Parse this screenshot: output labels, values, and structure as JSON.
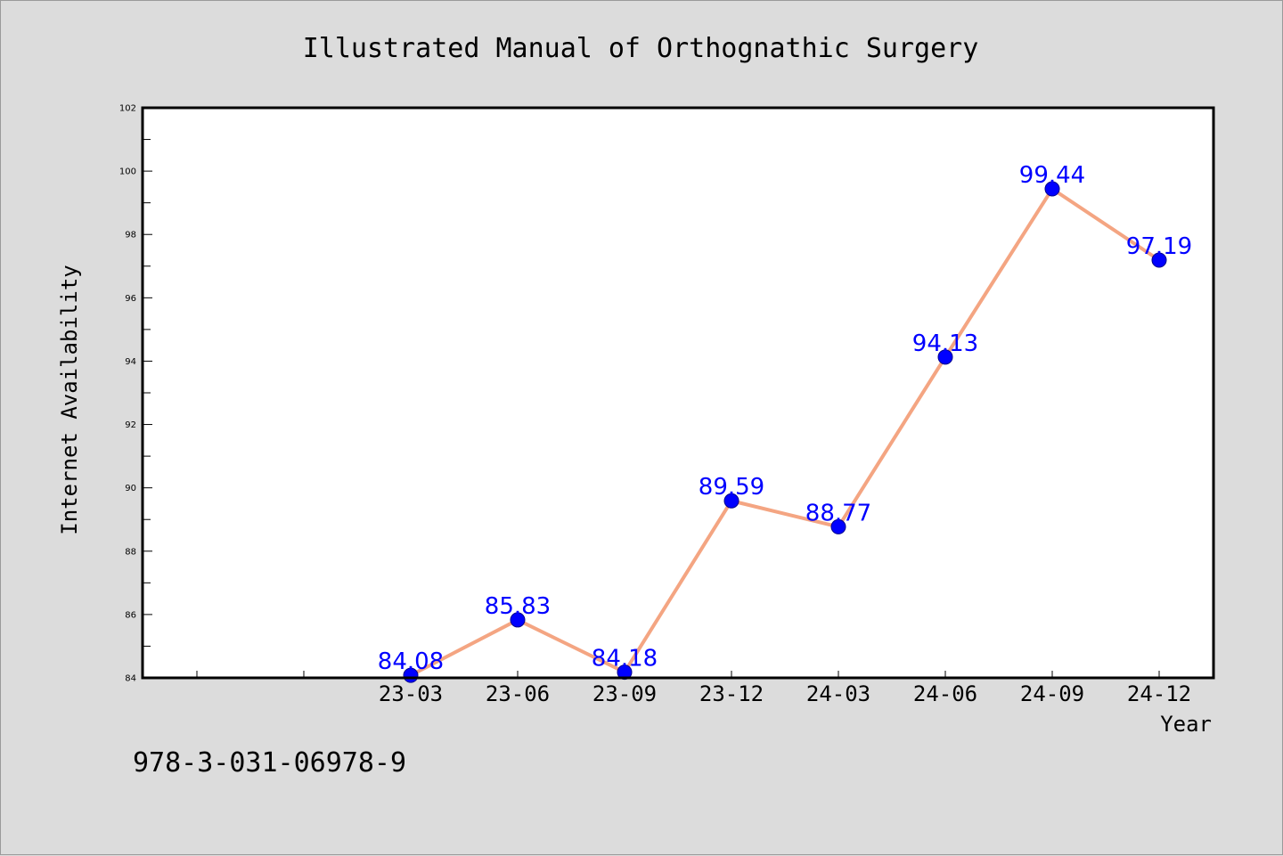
{
  "chart_data": {
    "type": "line",
    "title": "Illustrated Manual of Orthognathic Surgery",
    "xlabel": "Year",
    "ylabel": "Internet Availability",
    "categories": [
      "",
      "",
      "23-03",
      "23-06",
      "23-09",
      "23-12",
      "24-03",
      "24-06",
      "24-09",
      "24-12"
    ],
    "series": [
      {
        "values": [
          null,
          null,
          84.08,
          85.83,
          84.18,
          89.59,
          88.77,
          94.13,
          99.44,
          97.19
        ],
        "color": "#f4a582",
        "marker_color": "#0000ff"
      }
    ],
    "data_labels": [
      "",
      "",
      "84.08",
      "85.83",
      "84.18",
      "89.59",
      "88.77",
      "94.13",
      "99.44",
      "97.19"
    ],
    "ylim": [
      84,
      102
    ],
    "yticks": [
      "84",
      "86",
      "88",
      "90",
      "92",
      "94",
      "96",
      "98",
      "100",
      "102"
    ],
    "grid": false,
    "legend": "none"
  },
  "footnote": "978-3-031-06978-9",
  "colors": {
    "background": "#dcdcdc",
    "plot_background": "#ffffff",
    "line": "#f4a582",
    "marker": "#0000ff",
    "label": "#0000ff"
  }
}
